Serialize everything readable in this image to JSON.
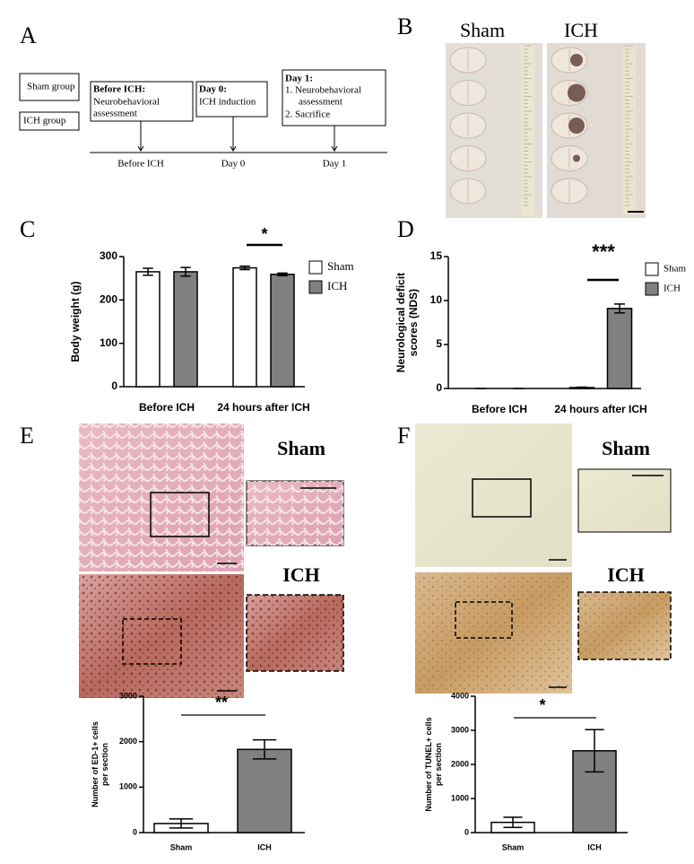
{
  "panel_labels": [
    "A",
    "B",
    "C",
    "D",
    "E",
    "F"
  ],
  "timeline": {
    "groups": [
      "Sham group",
      "ICH group"
    ],
    "steps": [
      {
        "title": "Before ICH:",
        "lines": [
          "Neurobehavioral",
          "assessment"
        ]
      },
      {
        "title": "Day 0:",
        "lines": [
          "ICH induction"
        ]
      },
      {
        "title": "Day 1:",
        "lines": [
          "1.  Neurobehavioral",
          "assessment",
          "2.  Sacrifice"
        ]
      }
    ],
    "ticks": [
      "Before ICH",
      "Day 0",
      "Day 1"
    ]
  },
  "images": {
    "B": {
      "labels": [
        "Sham",
        "ICH"
      ]
    },
    "E": {
      "labels": [
        "Sham",
        "ICH"
      ]
    },
    "F": {
      "labels": [
        "Sham",
        "ICH"
      ]
    }
  },
  "chart_data": [
    {
      "type": "grouped_bar",
      "ylabel": [
        "Body weight (g)"
      ],
      "categories": [
        "Before ICH",
        "24 hours after ICH"
      ],
      "series": [
        {
          "name": "Sham",
          "color": "#ffffff",
          "values": [
            265,
            274
          ],
          "errors": [
            8,
            4
          ]
        },
        {
          "name": "ICH",
          "color": "#808080",
          "values": [
            265,
            259
          ],
          "errors": [
            10,
            3
          ]
        }
      ],
      "ylim": [
        0,
        300
      ],
      "yticks": [
        0,
        100,
        200,
        300
      ],
      "legend": "right",
      "annotation": "*"
    },
    {
      "type": "grouped_bar",
      "ylabel": [
        "Neurological deficit",
        "scores (NDS)"
      ],
      "categories": [
        "Before ICH",
        "24 hours after ICH"
      ],
      "series": [
        {
          "name": "Sham",
          "color": "#ffffff",
          "values": [
            0,
            0.1
          ],
          "errors": [
            0,
            0.05
          ]
        },
        {
          "name": "ICH",
          "color": "#808080",
          "values": [
            0,
            9.1
          ],
          "errors": [
            0,
            0.5
          ]
        }
      ],
      "ylim": [
        0,
        15
      ],
      "yticks": [
        0,
        5,
        10,
        15
      ],
      "legend": "right",
      "annotation": "***"
    },
    {
      "type": "bar",
      "ylabel": [
        "Number of ED-1+ cells",
        "per section"
      ],
      "categories": [
        "Sham",
        "ICH"
      ],
      "values": [
        200,
        1830
      ],
      "errors": [
        100,
        210
      ],
      "colors": [
        "#ffffff",
        "#808080"
      ],
      "ylim": [
        0,
        3000
      ],
      "yticks": [
        0,
        1000,
        2000,
        3000
      ],
      "annotation": "**"
    },
    {
      "type": "bar",
      "ylabel": [
        "Number of TUNEL+ cells",
        "per section"
      ],
      "categories": [
        "Sham",
        "ICH"
      ],
      "values": [
        300,
        2400
      ],
      "errors": [
        150,
        620
      ],
      "colors": [
        "#ffffff",
        "#808080"
      ],
      "ylim": [
        0,
        4000
      ],
      "yticks": [
        0,
        1000,
        2000,
        3000,
        4000
      ],
      "annotation": "*"
    }
  ]
}
